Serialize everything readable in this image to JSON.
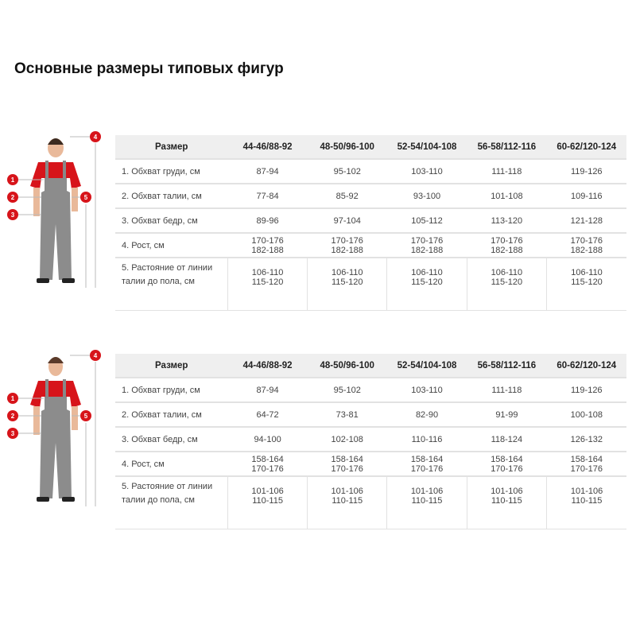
{
  "title": "Основные размеры типовых фигур",
  "colors": {
    "marker": "#d7141a",
    "header_bg": "#efefef"
  },
  "markers": [
    "1",
    "2",
    "3",
    "4",
    "5"
  ],
  "tables": [
    {
      "figure": "man",
      "headers": [
        "Размер",
        "44-46/88-92",
        "48-50/96-100",
        "52-54/104-108",
        "56-58/112-116",
        "60-62/120-124"
      ],
      "rows": [
        {
          "label": "1. Обхват груди, см",
          "values": [
            "87-94",
            "95-102",
            "103-110",
            "111-118",
            "119-126"
          ]
        },
        {
          "label": "2. Обхват талии, см",
          "values": [
            "77-84",
            "85-92",
            "93-100",
            "101-108",
            "109-116"
          ]
        },
        {
          "label": "3. Обхват бедр, см",
          "values": [
            "89-96",
            "97-104",
            "105-112",
            "113-120",
            "121-128"
          ]
        }
      ],
      "height": {
        "label": "4. Рост, см",
        "values": [
          "170-176",
          "182-188"
        ]
      },
      "distance": {
        "label": "5. Растояние от линии талии до пола, см",
        "values": [
          "106-110",
          "115-120"
        ]
      }
    },
    {
      "figure": "woman",
      "headers": [
        "Размер",
        "44-46/88-92",
        "48-50/96-100",
        "52-54/104-108",
        "56-58/112-116",
        "60-62/120-124"
      ],
      "rows": [
        {
          "label": "1. Обхват груди, см",
          "values": [
            "87-94",
            "95-102",
            "103-110",
            "111-118",
            "119-126"
          ]
        },
        {
          "label": "2. Обхват талии, см",
          "values": [
            "64-72",
            "73-81",
            "82-90",
            "91-99",
            "100-108"
          ]
        },
        {
          "label": "3. Обхват бедр, см",
          "values": [
            "94-100",
            "102-108",
            "110-116",
            "118-124",
            "126-132"
          ]
        }
      ],
      "height": {
        "label": "4. Рост, см",
        "values": [
          "158-164",
          "170-176"
        ]
      },
      "distance": {
        "label": "5. Растояние от линии талии до пола, см",
        "values": [
          "101-106",
          "110-115"
        ]
      }
    }
  ]
}
